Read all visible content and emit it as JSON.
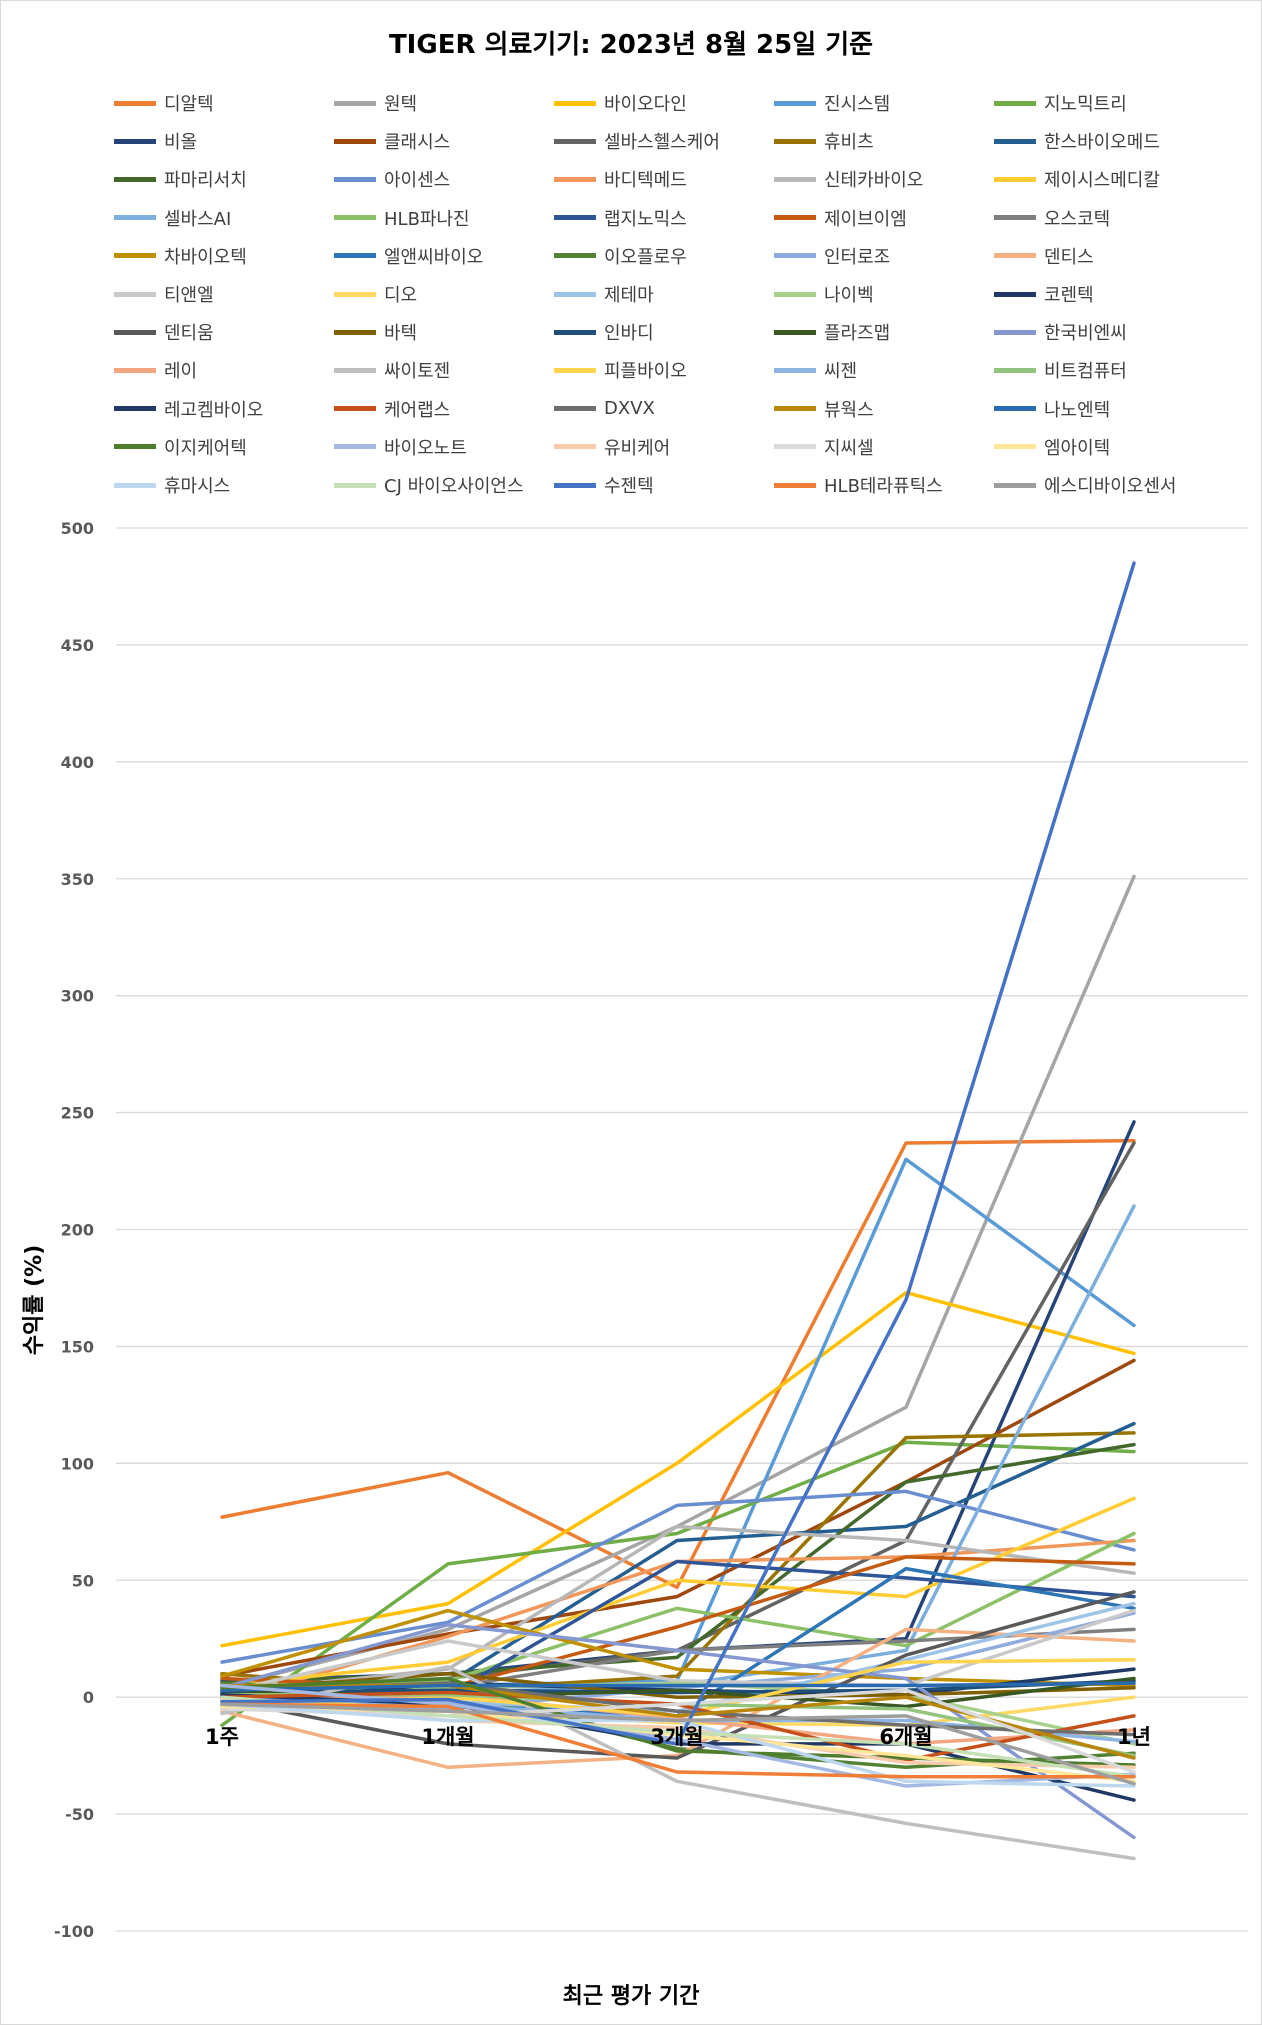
{
  "chart_data": {
    "type": "line",
    "title": "TIGER 의료기기: 2023년 8월 25일 기준",
    "xlabel": "최근 평가 기간",
    "ylabel": "수익률 (%)",
    "categories": [
      "1주",
      "1개월",
      "3개월",
      "6개월",
      "1년"
    ],
    "ylim": [
      -100,
      500
    ],
    "yticks": [
      "500",
      "450",
      "400",
      "350",
      "300",
      "250",
      "200",
      "150",
      "100",
      "50",
      "0",
      "-50",
      "-100"
    ],
    "grid": true,
    "legend_position": "top",
    "series": [
      {
        "name": "디알텍",
        "color": "#ED7D31",
        "values": [
          77,
          96,
          47,
          237,
          238
        ]
      },
      {
        "name": "원텍",
        "color": "#A5A5A5",
        "values": [
          4,
          29,
          73,
          124,
          351
        ]
      },
      {
        "name": "바이오다인",
        "color": "#FFC000",
        "values": [
          22,
          40,
          100,
          173,
          147
        ]
      },
      {
        "name": "진시스템",
        "color": "#5B9BD5",
        "values": [
          3,
          5,
          7,
          230,
          159
        ]
      },
      {
        "name": "지노믹트리",
        "color": "#70AD47",
        "values": [
          -12,
          57,
          70,
          109,
          105
        ]
      },
      {
        "name": "비올",
        "color": "#264478",
        "values": [
          7,
          10,
          20,
          25,
          246
        ]
      },
      {
        "name": "클래시스",
        "color": "#9E480E",
        "values": [
          9,
          27,
          43,
          92,
          144
        ]
      },
      {
        "name": "셀바스헬스케어",
        "color": "#636363",
        "values": [
          -4,
          8,
          20,
          67,
          237
        ]
      },
      {
        "name": "휴비츠",
        "color": "#997300",
        "values": [
          10,
          3,
          9,
          111,
          113
        ]
      },
      {
        "name": "한스바이오메드",
        "color": "#255E91",
        "values": [
          2,
          6,
          67,
          73,
          117
        ]
      },
      {
        "name": "파마리서치",
        "color": "#43682B",
        "values": [
          6,
          10,
          17,
          92,
          108
        ]
      },
      {
        "name": "아이센스",
        "color": "#698ED0",
        "values": [
          15,
          32,
          82,
          88,
          63
        ]
      },
      {
        "name": "바디텍메드",
        "color": "#F1975A",
        "values": [
          -2,
          26,
          58,
          60,
          67
        ]
      },
      {
        "name": "신테카바이오",
        "color": "#B7B7B7",
        "values": [
          2,
          12,
          73,
          67,
          53
        ]
      },
      {
        "name": "제이시스메디칼",
        "color": "#FFCD33",
        "values": [
          5,
          15,
          50,
          43,
          85
        ]
      },
      {
        "name": "셀바스AI",
        "color": "#7CAFDD",
        "values": [
          -2,
          2,
          5,
          20,
          210
        ]
      },
      {
        "name": "HLB파나진",
        "color": "#8CC168",
        "values": [
          3,
          7,
          38,
          22,
          70
        ]
      },
      {
        "name": "랩지노믹스",
        "color": "#2F5597",
        "values": [
          1,
          1,
          58,
          51,
          43
        ]
      },
      {
        "name": "제이브이엠",
        "color": "#C55A11",
        "values": [
          8,
          4,
          30,
          60,
          57
        ]
      },
      {
        "name": "오스코텍",
        "color": "#7F7F7F",
        "values": [
          5,
          4,
          20,
          24,
          29
        ]
      },
      {
        "name": "차바이오텍",
        "color": "#BF9000",
        "values": [
          9,
          37,
          12,
          8,
          5
        ]
      },
      {
        "name": "엘앤씨바이오",
        "color": "#2E75B6",
        "values": [
          -1,
          -3,
          -8,
          55,
          38
        ]
      },
      {
        "name": "이오플로우",
        "color": "#548235",
        "values": [
          6,
          2,
          -22,
          -30,
          -24
        ]
      },
      {
        "name": "인터로조",
        "color": "#8FAADC",
        "values": [
          0,
          -5,
          4,
          12,
          36
        ]
      },
      {
        "name": "덴티스",
        "color": "#F4B183",
        "values": [
          -6,
          -30,
          -25,
          29,
          24
        ]
      },
      {
        "name": "티앤엘",
        "color": "#C9C9C9",
        "values": [
          2,
          24,
          7,
          5,
          37
        ]
      },
      {
        "name": "디오",
        "color": "#FFD966",
        "values": [
          -5,
          -6,
          -11,
          -12,
          0
        ]
      },
      {
        "name": "제테마",
        "color": "#9DC3E6",
        "values": [
          0,
          -2,
          -6,
          16,
          40
        ]
      },
      {
        "name": "나이벡",
        "color": "#A9D18E",
        "values": [
          2,
          4,
          6,
          1,
          -20
        ]
      },
      {
        "name": "코렌텍",
        "color": "#1F3864",
        "values": [
          -3,
          6,
          3,
          1,
          12
        ]
      },
      {
        "name": "덴티움",
        "color": "#595959",
        "values": [
          -1,
          -20,
          -26,
          18,
          45
        ]
      },
      {
        "name": "바텍",
        "color": "#806000",
        "values": [
          3,
          10,
          0,
          1,
          4
        ]
      },
      {
        "name": "인바디",
        "color": "#1F4E79",
        "values": [
          2,
          3,
          2,
          3,
          7
        ]
      },
      {
        "name": "플라즈맵",
        "color": "#385723",
        "values": [
          3,
          0,
          3,
          -4,
          8
        ]
      },
      {
        "name": "한국비엔씨",
        "color": "#8497D0",
        "values": [
          4,
          31,
          20,
          8,
          -60
        ]
      },
      {
        "name": "레이",
        "color": "#F4A582",
        "values": [
          -2,
          1,
          -9,
          -20,
          -14
        ]
      },
      {
        "name": "싸이토젠",
        "color": "#BFBFBF",
        "values": [
          -7,
          13,
          -36,
          -54,
          -69
        ]
      },
      {
        "name": "피플바이오",
        "color": "#FFD54F",
        "values": [
          -5,
          0,
          -8,
          15,
          16
        ]
      },
      {
        "name": "씨젠",
        "color": "#8EB4E3",
        "values": [
          0,
          -3,
          -10,
          -10,
          -19
        ]
      },
      {
        "name": "비트컴퓨터",
        "color": "#93C47D",
        "values": [
          1,
          1,
          -3,
          -5,
          -25
        ]
      },
      {
        "name": "레고켐바이오",
        "color": "#203864",
        "values": [
          1,
          -3,
          -20,
          -20,
          -44
        ]
      },
      {
        "name": "케어랩스",
        "color": "#C5501A",
        "values": [
          0,
          2,
          -3,
          -27,
          -8
        ]
      },
      {
        "name": "DXVX",
        "color": "#6E6E6E",
        "values": [
          3,
          6,
          -6,
          -12,
          -16
        ]
      },
      {
        "name": "뷰웍스",
        "color": "#B8860B",
        "values": [
          5,
          5,
          -8,
          0,
          -26
        ]
      },
      {
        "name": "나노엔텍",
        "color": "#2A6AAF",
        "values": [
          3,
          5,
          5,
          5,
          6
        ]
      },
      {
        "name": "이지케어텍",
        "color": "#4E7D2E",
        "values": [
          4,
          8,
          -23,
          -26,
          -29
        ]
      },
      {
        "name": "바이오노트",
        "color": "#A4B8E2",
        "values": [
          5,
          -3,
          -18,
          -38,
          -33
        ]
      },
      {
        "name": "유비케어",
        "color": "#F8CBAD",
        "values": [
          -1,
          -10,
          -13,
          -28,
          -30
        ]
      },
      {
        "name": "지씨셀",
        "color": "#D9D9D9",
        "values": [
          -5,
          -8,
          -3,
          3,
          -32
        ]
      },
      {
        "name": "엠아이텍",
        "color": "#FFE699",
        "values": [
          -4,
          -6,
          -16,
          -25,
          -36
        ]
      },
      {
        "name": "휴마시스",
        "color": "#BDD7EE",
        "values": [
          -3,
          -10,
          -10,
          -36,
          -38
        ]
      },
      {
        "name": "CJ 바이오사이언스",
        "color": "#C5E0B4",
        "values": [
          0,
          -8,
          -15,
          -20,
          -34
        ]
      },
      {
        "name": "수젠텍",
        "color": "#4472C4",
        "values": [
          -2,
          -1,
          -20,
          170,
          485
        ]
      },
      {
        "name": "HLB테라퓨틱스",
        "color": "#F07E36",
        "values": [
          -3,
          -4,
          -32,
          -34,
          -34
        ]
      },
      {
        "name": "에스디바이오센서",
        "color": "#9E9E9E",
        "values": [
          -3,
          -6,
          -10,
          -8,
          -37
        ]
      }
    ]
  }
}
